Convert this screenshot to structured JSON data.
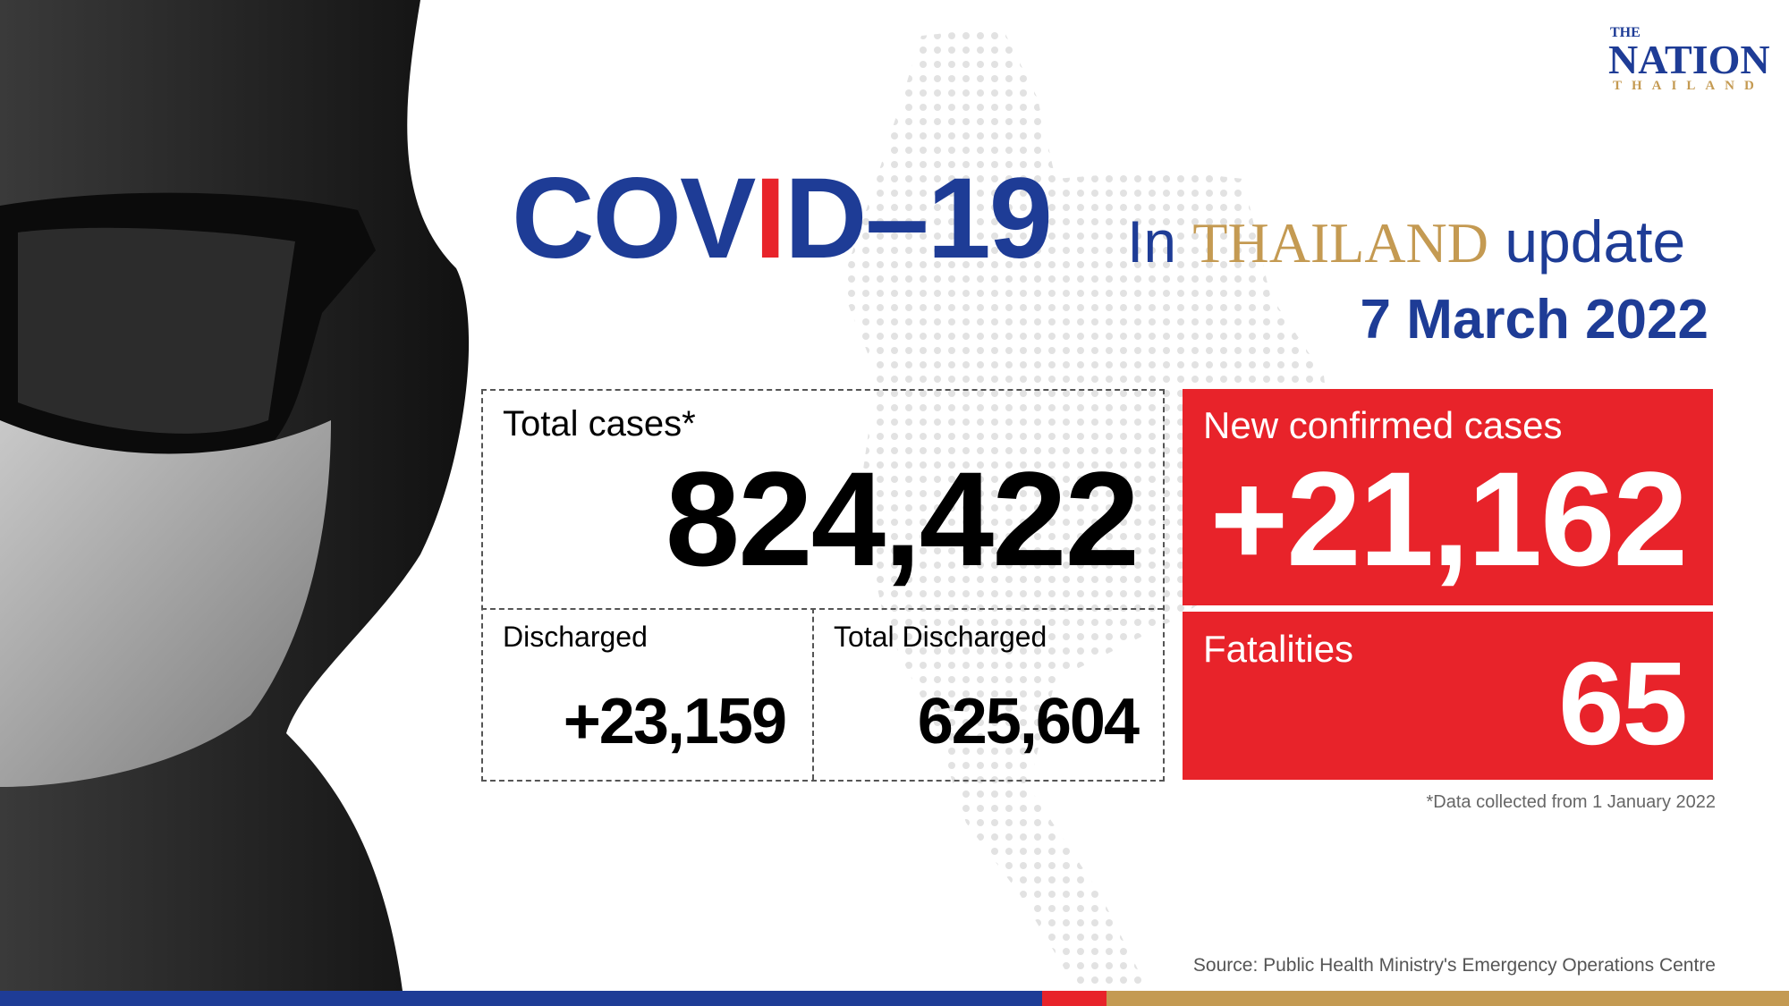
{
  "logo": {
    "top": "THE",
    "name": "NATION",
    "country": "THAILAND"
  },
  "header": {
    "title_parts": [
      "COV",
      "I",
      "D–19"
    ],
    "in": "In",
    "country": "THAILAND",
    "update": "update",
    "date": "7 March 2022"
  },
  "total_cases": {
    "label": "Total cases*",
    "value": "824,422"
  },
  "discharged": {
    "label": "Discharged",
    "value": "+23,159"
  },
  "total_discharged": {
    "label": "Total Discharged",
    "value": "625,604"
  },
  "new_cases": {
    "label": "New confirmed cases",
    "value": "+21,162"
  },
  "fatalities": {
    "label": "Fatalities",
    "value": "65"
  },
  "footnote": "*Data collected from 1 January 2022",
  "source": "Source: Public Health Ministry's Emergency Operations Centre"
}
